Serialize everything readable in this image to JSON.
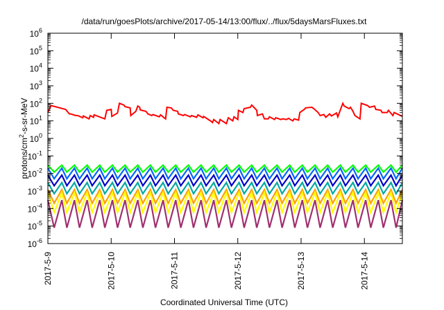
{
  "chart_data": {
    "type": "line",
    "title": "/data/run/goesPlots/archive/2017-05-14/13:00/flux/../flux/5daysMarsFluxes.txt",
    "xlabel": "Coordinated Universal Time (UTC)",
    "ylabel": "protons/cm2-s-sr-MeV",
    "ylabel_parts": [
      "protons/cm",
      "2",
      "-s-sr-MeV"
    ],
    "y_scale": "log",
    "ylim": [
      1e-06,
      1000000.0
    ],
    "xlim": [
      0,
      5.6
    ],
    "grid": false,
    "legend": "none",
    "x_ticks": [
      {
        "value": 0,
        "label": "2017-5-9"
      },
      {
        "value": 1,
        "label": "2017-5-10"
      },
      {
        "value": 2,
        "label": "2017-5-11"
      },
      {
        "value": 3,
        "label": "2017-5-12"
      },
      {
        "value": 4,
        "label": "2017-5-13"
      },
      {
        "value": 5,
        "label": "2017-5-14"
      }
    ],
    "y_ticks": [
      {
        "value": -6,
        "base": "10",
        "exp": "-6"
      },
      {
        "value": -5,
        "base": "10",
        "exp": "-5"
      },
      {
        "value": -4,
        "base": "10",
        "exp": "-4"
      },
      {
        "value": -3,
        "base": "10",
        "exp": "-3"
      },
      {
        "value": -2,
        "base": "10",
        "exp": "-2"
      },
      {
        "value": -1,
        "base": "10",
        "exp": "-1"
      },
      {
        "value": 0,
        "base": "10",
        "exp": "0"
      },
      {
        "value": 1,
        "base": "10",
        "exp": "1"
      },
      {
        "value": 2,
        "base": "10",
        "exp": "2"
      },
      {
        "value": 3,
        "base": "10",
        "exp": "3"
      },
      {
        "value": 4,
        "base": "10",
        "exp": "4"
      },
      {
        "value": 5,
        "base": "10",
        "exp": "5"
      },
      {
        "value": 6,
        "base": "10",
        "exp": "6"
      }
    ],
    "series": [
      {
        "color": "#ff0000",
        "x": [
          0,
          0.05,
          0.28,
          0.34,
          0.36,
          0.44,
          0.47,
          0.55,
          0.56,
          0.65,
          0.67,
          0.72,
          0.73,
          0.9,
          0.93,
          1.0,
          1.01,
          1.1,
          1.13,
          1.2,
          1.22,
          1.3,
          1.31,
          1.39,
          1.42,
          1.45,
          1.46,
          1.55,
          1.58,
          1.64,
          1.66,
          1.76,
          1.78,
          1.86,
          1.88,
          1.95,
          1.98,
          2.05,
          2.06,
          2.14,
          2.16,
          2.25,
          2.27,
          2.35,
          2.37,
          2.45,
          2.46,
          2.55,
          2.57,
          2.6,
          2.62,
          2.7,
          2.72,
          2.82,
          2.85,
          2.92,
          2.94,
          3.0,
          3.01,
          3.08,
          3.1,
          3.2,
          3.22,
          3.3,
          3.31,
          3.39,
          3.42,
          3.48,
          3.5,
          3.58,
          3.6,
          3.68,
          3.71,
          3.77,
          3.8,
          3.87,
          3.89,
          3.96,
          3.98,
          4.05,
          4.07,
          4.17,
          4.2,
          4.27,
          4.3,
          4.36,
          4.39,
          4.45,
          4.48,
          4.56,
          4.58,
          4.66,
          4.68,
          4.76,
          4.78,
          4.82,
          4.85,
          4.93,
          4.95,
          5.05,
          5.08,
          5.16,
          5.18,
          5.26,
          5.28,
          5.36,
          5.38,
          5.45,
          5.47,
          5.6
        ],
        "y": [
          30,
          75,
          45,
          25,
          25,
          20,
          20,
          15,
          19,
          13,
          20,
          16,
          22,
          13,
          40,
          45,
          18,
          28,
          100,
          80,
          65,
          55,
          20,
          35,
          70,
          60,
          42,
          35,
          25,
          20,
          23,
          17,
          22,
          13,
          60,
          55,
          40,
          35,
          25,
          20,
          23,
          17,
          20,
          16,
          22,
          15,
          18,
          11,
          10,
          8,
          12,
          7,
          12,
          7,
          15,
          10,
          17,
          12,
          40,
          30,
          50,
          60,
          80,
          40,
          20,
          25,
          13,
          13,
          17,
          12,
          15,
          12,
          13,
          12,
          14,
          10,
          13,
          11,
          30,
          45,
          55,
          60,
          50,
          30,
          20,
          23,
          16,
          25,
          19,
          28,
          17,
          100,
          70,
          50,
          60,
          35,
          20,
          13,
          100,
          75,
          60,
          70,
          45,
          40,
          30,
          30,
          40,
          20,
          30,
          18
        ]
      },
      {
        "color": "#00ff00",
        "sawtooth": {
          "high": 0.03,
          "low": 0.012
        }
      },
      {
        "color": "#0066ff",
        "sawtooth": {
          "high": 0.02,
          "low": 0.005
        }
      },
      {
        "color": "#0000c8",
        "sawtooth": {
          "high": 0.008,
          "low": 0.002
        }
      },
      {
        "color": "#00aaa0",
        "sawtooth": {
          "high": 0.003,
          "low": 0.0007
        }
      },
      {
        "color": "#ffa000",
        "sawtooth": {
          "high": 0.0012,
          "low": 0.0002
        }
      },
      {
        "color": "#ffff00",
        "sawtooth": {
          "high": 0.0008,
          "low": 6e-05
        }
      },
      {
        "color": "#a03070",
        "sawtooth": {
          "high": 0.0003,
          "low": 8e-06
        }
      }
    ],
    "sawtooth_x": [
      0,
      0.1,
      0.22,
      0.3,
      0.42,
      0.5,
      0.62,
      0.7,
      0.82,
      0.9,
      1.02,
      1.1,
      1.22,
      1.3,
      1.42,
      1.5,
      1.62,
      1.7,
      1.82,
      1.9,
      2.02,
      2.1,
      2.22,
      2.3,
      2.42,
      2.5,
      2.62,
      2.7,
      2.82,
      2.9,
      3.02,
      3.1,
      3.22,
      3.3,
      3.42,
      3.5,
      3.62,
      3.7,
      3.82,
      3.9,
      4.02,
      4.1,
      4.22,
      4.3,
      4.42,
      4.5,
      4.62,
      4.7,
      4.82,
      4.9,
      5.02,
      5.1,
      5.22,
      5.3,
      5.42,
      5.5,
      5.6
    ]
  }
}
